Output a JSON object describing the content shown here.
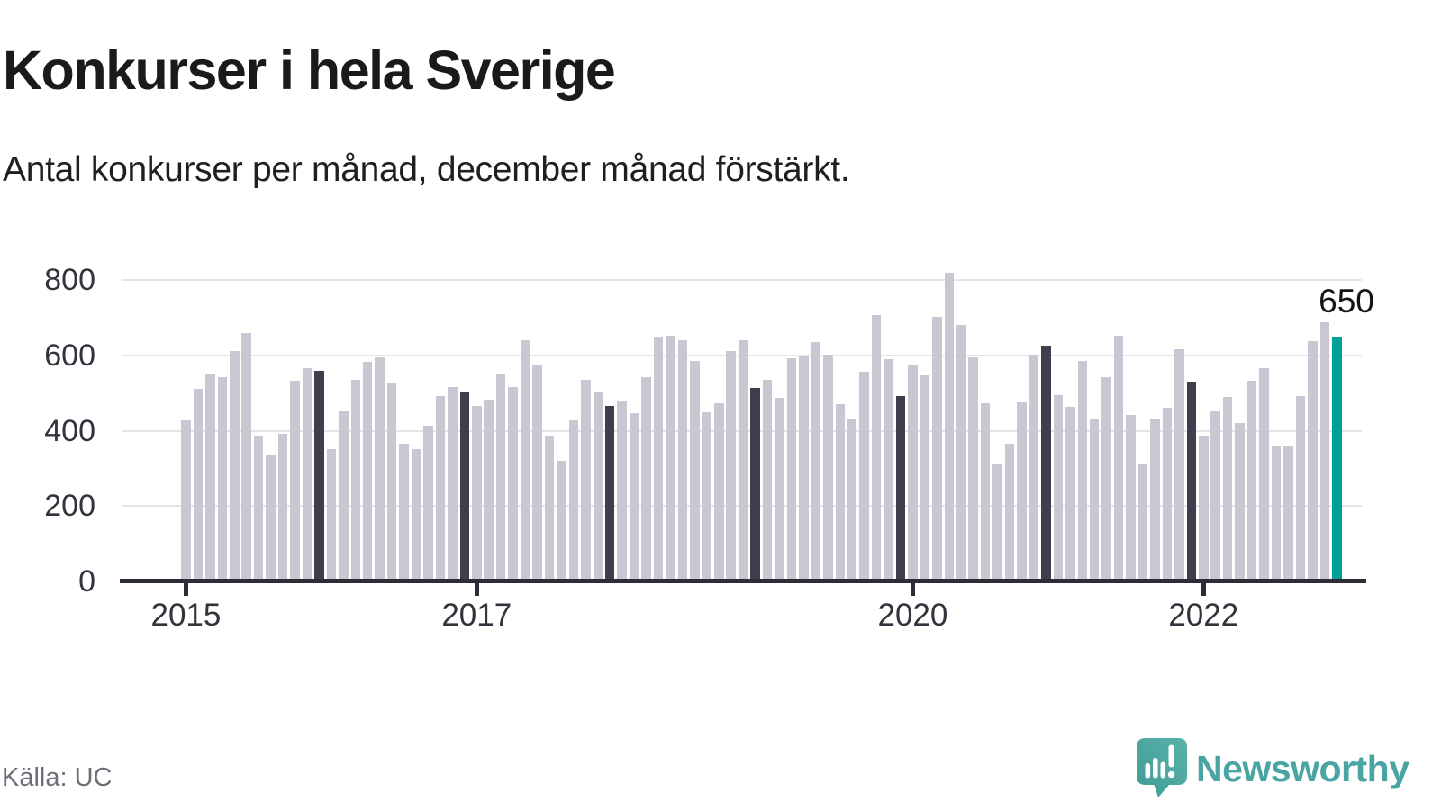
{
  "header": {
    "title": "Konkurser i hela Sverige",
    "subtitle": "Antal konkurser per månad, december månad förstärkt."
  },
  "annotation": {
    "latest_value_label": "650"
  },
  "footer": {
    "source": "Källa: UC",
    "brand_name": "Newsworthy",
    "brand_icon": "newsworthy-speech-bubble-barchart-icon"
  },
  "colors": {
    "bar_normal": "#c9c7d2",
    "bar_december": "#3f3e4d",
    "bar_highlight": "#00a096",
    "axis": "#2e2d37",
    "grid": "#e5e4e8",
    "brand_teal": "#48a5a1"
  },
  "chart_data": {
    "type": "bar",
    "title": "Konkurser i hela Sverige",
    "subtitle": "Antal konkurser per månad, december månad förstärkt.",
    "ylabel": "Antal konkurser",
    "xlabel": "",
    "ylim": [
      0,
      800
    ],
    "yticks": [
      0,
      200,
      400,
      600,
      800
    ],
    "grid": true,
    "legend": false,
    "highlight_rule": "Every December bar drawn dark; latest month (Dec 2022) drawn teal with value label",
    "latest": {
      "month": "2022-12",
      "value": 650,
      "label": "650"
    },
    "x_ticks": [
      {
        "label": "2015",
        "month": "2015-01"
      },
      {
        "label": "2017",
        "month": "2017-01"
      },
      {
        "label": "2020",
        "month": "2020-01"
      },
      {
        "label": "2022",
        "month": "2022-01"
      }
    ],
    "months": [
      "2015-01",
      "2015-02",
      "2015-03",
      "2015-04",
      "2015-05",
      "2015-06",
      "2015-07",
      "2015-08",
      "2015-09",
      "2015-10",
      "2015-11",
      "2015-12",
      "2016-01",
      "2016-02",
      "2016-03",
      "2016-04",
      "2016-05",
      "2016-06",
      "2016-07",
      "2016-08",
      "2016-09",
      "2016-10",
      "2016-11",
      "2016-12",
      "2017-01",
      "2017-02",
      "2017-03",
      "2017-04",
      "2017-05",
      "2017-06",
      "2017-07",
      "2017-08",
      "2017-09",
      "2017-10",
      "2017-11",
      "2017-12",
      "2018-01",
      "2018-02",
      "2018-03",
      "2018-04",
      "2018-05",
      "2018-06",
      "2018-07",
      "2018-08",
      "2018-09",
      "2018-10",
      "2018-11",
      "2018-12",
      "2019-01",
      "2019-02",
      "2019-03",
      "2019-04",
      "2019-05",
      "2019-06",
      "2019-07",
      "2019-08",
      "2019-09",
      "2019-10",
      "2019-11",
      "2019-12",
      "2020-01",
      "2020-02",
      "2020-03",
      "2020-04",
      "2020-05",
      "2020-06",
      "2020-07",
      "2020-08",
      "2020-09",
      "2020-10",
      "2020-11",
      "2020-12",
      "2021-01",
      "2021-02",
      "2021-03",
      "2021-04",
      "2021-05",
      "2021-06",
      "2021-07",
      "2021-08",
      "2021-09",
      "2021-10",
      "2021-11",
      "2021-12",
      "2022-01",
      "2022-02",
      "2022-03",
      "2022-04",
      "2022-05",
      "2022-06",
      "2022-07",
      "2022-08",
      "2022-09",
      "2022-10",
      "2022-11",
      "2022-12"
    ],
    "values": [
      427,
      510,
      549,
      542,
      612,
      660,
      387,
      335,
      391,
      533,
      565,
      560,
      352,
      451,
      534,
      582,
      595,
      528,
      366,
      352,
      414,
      492,
      516,
      503,
      466,
      482,
      551,
      516,
      641,
      573,
      386,
      321,
      427,
      534,
      501,
      465,
      479,
      446,
      542,
      650,
      653,
      641,
      585,
      450,
      473,
      612,
      641,
      514,
      534,
      486,
      592,
      597,
      636,
      602,
      470,
      429,
      557,
      706,
      590,
      493,
      572,
      547,
      702,
      818,
      681,
      594,
      472,
      310,
      365,
      476,
      602,
      625,
      495,
      464,
      586,
      431,
      542,
      652,
      441,
      313,
      430,
      462,
      615,
      530,
      387,
      452,
      490,
      421,
      533,
      565,
      359,
      359,
      492,
      638,
      687,
      650
    ]
  }
}
